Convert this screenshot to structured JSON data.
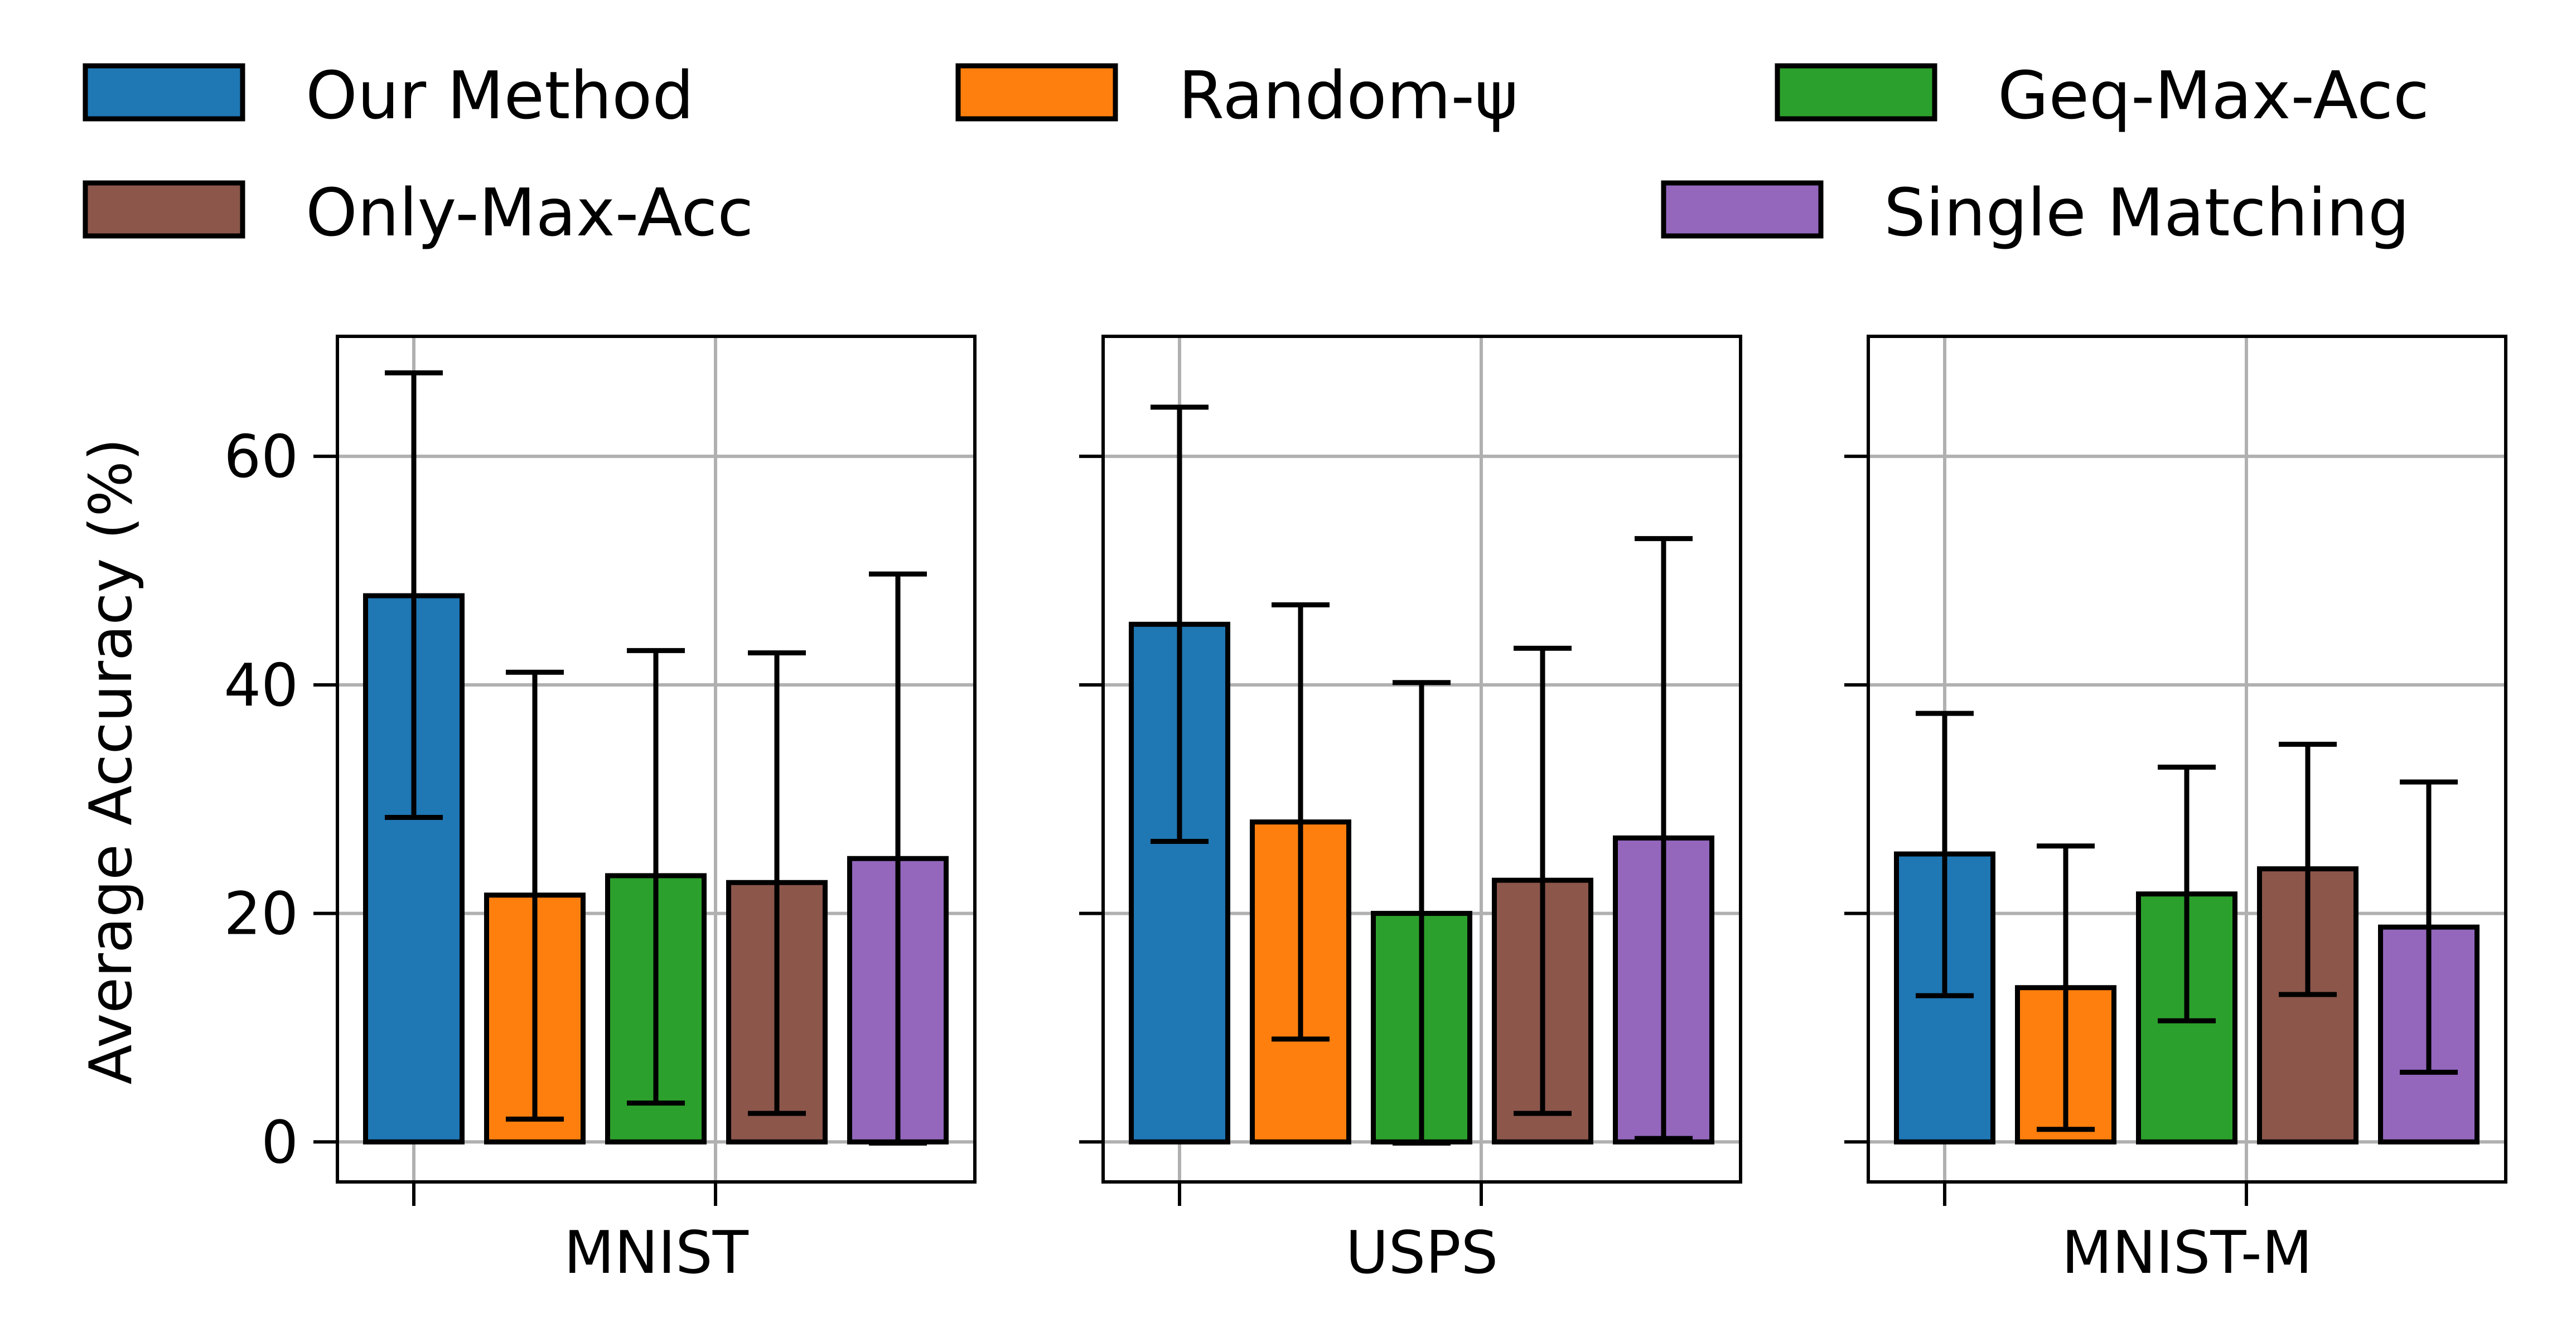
{
  "chart_data": {
    "type": "bar",
    "ylabel": "Average Accuracy (%)",
    "ylim": [
      -3.5,
      70.5
    ],
    "yticks": [
      0,
      20,
      40,
      60
    ],
    "grid": true,
    "legend_position": "top",
    "series": [
      {
        "name": "Our Method",
        "color": "#1f77b4"
      },
      {
        "name": "Random-ψ",
        "color": "#ff7f0e"
      },
      {
        "name": "Geq-Max-Acc",
        "color": "#2ca02c"
      },
      {
        "name": "Only-Max-Acc",
        "color": "#8c564b"
      },
      {
        "name": "Single Matching",
        "color": "#9467bd"
      }
    ],
    "panels": [
      {
        "xlabel": "MNIST",
        "values": [
          47.8,
          21.6,
          23.3,
          22.7,
          24.8
        ],
        "err_low": [
          28.4,
          2.0,
          3.4,
          2.5,
          -0.1
        ],
        "err_high": [
          67.3,
          41.1,
          43.0,
          42.8,
          49.7
        ]
      },
      {
        "xlabel": "USPS",
        "values": [
          45.3,
          28.0,
          20.0,
          22.9,
          26.6
        ],
        "err_low": [
          26.3,
          9.0,
          -0.1,
          2.5,
          0.3
        ],
        "err_high": [
          64.3,
          47.0,
          40.2,
          43.2,
          52.8
        ]
      },
      {
        "xlabel": "MNIST-M",
        "values": [
          25.2,
          13.5,
          21.7,
          23.9,
          18.8
        ],
        "err_low": [
          12.8,
          1.1,
          10.6,
          12.9,
          6.1
        ],
        "err_high": [
          37.5,
          25.9,
          32.8,
          34.8,
          31.5
        ]
      }
    ]
  }
}
